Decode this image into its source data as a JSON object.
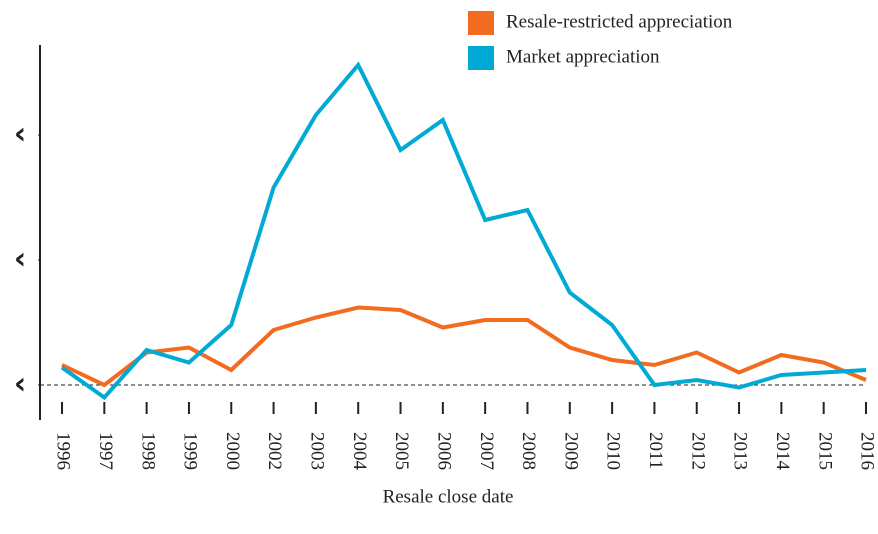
{
  "chart_data": {
    "type": "line",
    "x_label": "Resale close date",
    "categories": [
      "1996",
      "1997",
      "1998",
      "1999",
      "2000",
      "2002",
      "2003",
      "2004",
      "2005",
      "2006",
      "2007",
      "2008",
      "2009",
      "2010",
      "2011",
      "2012",
      "2013",
      "2014",
      "2015",
      "2016"
    ],
    "series": [
      {
        "name": "Resale-restricted appreciation",
        "color": "#f26b21",
        "values": [
          8,
          0,
          13,
          15,
          6,
          22,
          27,
          31,
          30,
          23,
          26,
          26,
          15,
          10,
          8,
          13,
          5,
          12,
          9,
          2
        ]
      },
      {
        "name": "Market appreciation",
        "color": "#00aad4",
        "values": [
          7,
          -5,
          14,
          9,
          24,
          79,
          108,
          128,
          94,
          106,
          66,
          70,
          37,
          24,
          0,
          2,
          -1,
          4,
          5,
          6
        ]
      }
    ],
    "ylim": [
      -14,
      136
    ],
    "yticks": [
      {
        "value": 0,
        "label": "‹"
      },
      {
        "value": 50,
        "label": "‹"
      },
      {
        "value": 100,
        "label": "‹"
      }
    ],
    "zero_line": true,
    "legend": "top-right"
  }
}
